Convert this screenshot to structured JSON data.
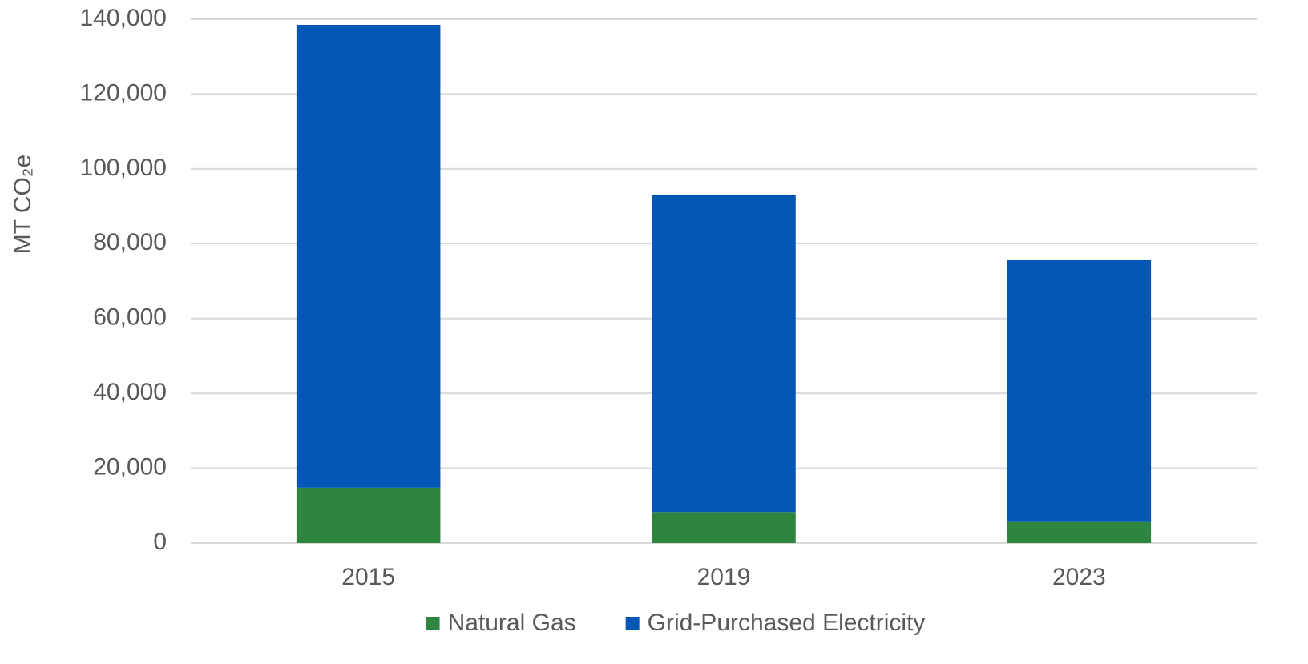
{
  "chart_data": {
    "type": "stacked_bar",
    "y_axis_label": "MT CO₂e",
    "categories": [
      "2015",
      "2019",
      "2023"
    ],
    "series": [
      {
        "name": "Natural Gas",
        "color": "#2e8540",
        "values": [
          14800,
          8300,
          5600
        ]
      },
      {
        "name": "Grid-Purchased Electricity",
        "color": "#0457b4",
        "values": [
          123700,
          84800,
          70000
        ]
      }
    ],
    "ylim": [
      0,
      140000
    ],
    "yticks": [
      0,
      {
        "value": 20000,
        "label": "20,000"
      },
      {
        "value": 40000,
        "label": "40,000"
      },
      {
        "value": 60000,
        "label": "60,000"
      },
      {
        "value": 80000,
        "label": "80,000"
      },
      {
        "value": 100000,
        "label": "100,000"
      },
      {
        "value": 120000,
        "label": "120,000"
      },
      {
        "value": 140000,
        "label": "140,000"
      }
    ],
    "grid": true,
    "legend": "bottom"
  }
}
